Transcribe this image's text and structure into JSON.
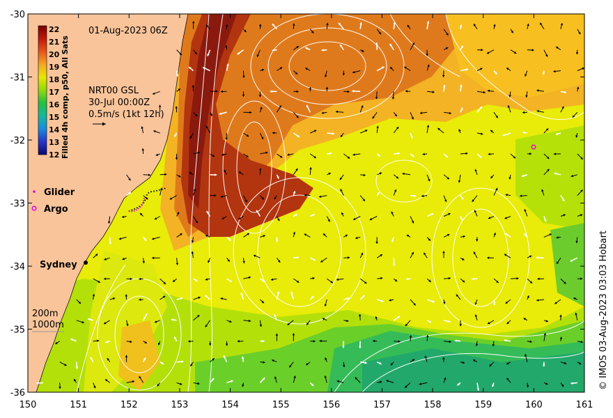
{
  "map": {
    "date_label": "01-Aug-2023 06Z",
    "product_lines": [
      "NRT00 GSL",
      "30-Jul 00:00Z",
      "0.5m/s (1kt 12h)"
    ],
    "colorbar_title": "Filled 4h comp, p50, All Sats",
    "colorbar_ticks": [
      "22",
      "21",
      "20",
      "19",
      "18",
      "17",
      "16",
      "15",
      "14",
      "13",
      "12"
    ],
    "legend": {
      "glider": "Glider",
      "argo": "Argo"
    },
    "place_label": "Sydney",
    "depth_labels": [
      "200m",
      "1000m"
    ],
    "credit": "© IMOS 03-Aug-2023 03:03 Hobart",
    "x_ticks": [
      "150",
      "151",
      "152",
      "153",
      "154",
      "155",
      "156",
      "157",
      "158",
      "159",
      "160",
      "161"
    ],
    "y_ticks": [
      "-30",
      "-31",
      "-32",
      "-33",
      "-34",
      "-35",
      "-36"
    ],
    "lon_range": [
      150,
      161
    ],
    "lat_range": [
      -36,
      -30
    ],
    "colors": {
      "land": "#f9c49a",
      "sst_22": "#8b1a0e",
      "sst_20": "#d5611b",
      "sst_19": "#f5a623",
      "sst_18": "#e8e800",
      "sst_17": "#8fd80e",
      "sst_16": "#2fbd52",
      "glider": "#e000e0"
    }
  }
}
